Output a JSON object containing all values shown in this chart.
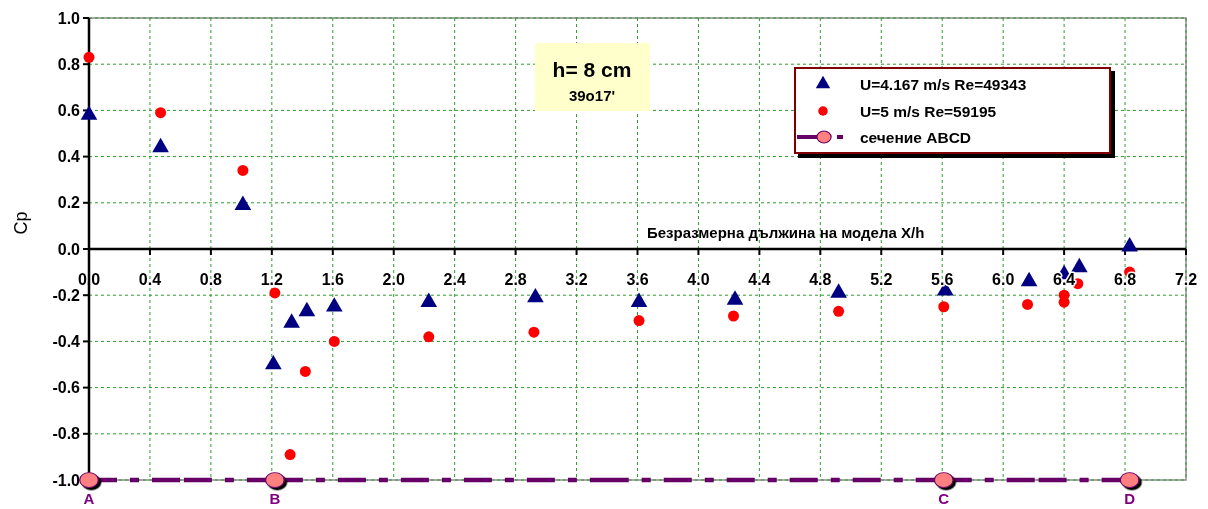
{
  "chart_data": {
    "type": "scatter",
    "xlabel": "Безразмерна дължина на модела X/h",
    "ylabel": "Cp",
    "annotations": [
      "h= 8 cm",
      "39o17'",
      {
        "text": "A",
        "x": 0,
        "y": -1
      },
      {
        "text": "B",
        "x": 1.22,
        "y": -1
      },
      {
        "text": "C",
        "x": 5.61,
        "y": -1
      },
      {
        "text": "D",
        "x": 6.83,
        "y": -1
      }
    ],
    "xlim": [
      0,
      7.2
    ],
    "xticks": [
      {
        "value": 0,
        "label": "0.0"
      },
      0.4,
      0.8,
      1.2,
      1.6,
      {
        "value": 2,
        "label": "2.0"
      },
      2.4,
      2.8,
      3.2,
      3.6,
      {
        "value": 4,
        "label": "4.0"
      },
      4.4,
      4.8,
      5.2,
      5.6,
      {
        "value": 6,
        "label": "6.0"
      },
      6.4,
      6.8,
      7.2
    ],
    "ylim": [
      -1,
      1
    ],
    "yticks": [
      {
        "value": -1,
        "label": "-1.0"
      },
      -0.8,
      -0.6,
      -0.4,
      -0.2,
      {
        "value": 0,
        "label": "0.0"
      },
      0.2,
      0.4,
      0.6,
      0.8,
      {
        "value": 1,
        "label": "1.0"
      }
    ],
    "grid": true,
    "legend": "top right",
    "series": [
      {
        "name": "U=4.167 m/s Re=49343",
        "marker": "triangle",
        "color": "#000080",
        "x": [
          0,
          0.47,
          1.01,
          1.21,
          1.33,
          1.43,
          1.61,
          2.23,
          2.93,
          3.61,
          4.24,
          4.92,
          5.62,
          6.17,
          6.4,
          6.5,
          6.83
        ],
        "values": [
          0.58,
          0.44,
          0.19,
          -0.5,
          -0.32,
          -0.27,
          -0.25,
          -0.23,
          -0.21,
          -0.23,
          -0.22,
          -0.19,
          -0.18,
          -0.14,
          -0.11,
          -0.08,
          0.01
        ]
      },
      {
        "name": "U=5 m/s Re=59195",
        "marker": "circle",
        "color": "#ff0000",
        "x": [
          0,
          0.47,
          1.01,
          1.22,
          1.32,
          1.42,
          1.61,
          2.23,
          2.92,
          3.61,
          4.23,
          4.92,
          5.61,
          6.16,
          6.4,
          6.4,
          6.49,
          6.83
        ],
        "values": [
          0.83,
          0.59,
          0.34,
          -0.19,
          -0.89,
          -0.53,
          -0.4,
          -0.38,
          -0.36,
          -0.31,
          -0.29,
          -0.27,
          -0.25,
          -0.24,
          -0.2,
          -0.23,
          -0.15,
          -0.1
        ]
      },
      {
        "name": "сечение ABCD",
        "type": "line",
        "marker": "circle",
        "line_style": "dashed",
        "color": "#660066",
        "colors": [
          "#ff8080",
          "#ff8080",
          "#ff8080",
          "#ff8080"
        ],
        "x": [
          0,
          1.22,
          5.61,
          6.83
        ],
        "values": [
          -1,
          -1,
          -1,
          -1
        ]
      }
    ]
  }
}
